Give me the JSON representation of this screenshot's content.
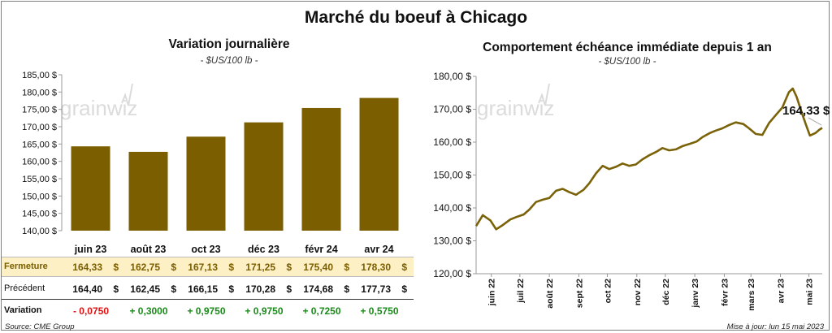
{
  "main_title": "Marché du boeuf à Chicago",
  "left_panel": {
    "title": "Variation  journalière",
    "subtitle": "- $US/100 lb -",
    "watermark": "grainwiz",
    "table": {
      "row_labels": {
        "close": "Fermeture",
        "previous": "Précédent",
        "change": "Variation"
      },
      "currency_symbol": "$",
      "close": [
        "164,33",
        "162,75",
        "167,13",
        "171,25",
        "175,40",
        "178,30"
      ],
      "previous": [
        "164,40",
        "162,45",
        "166,15",
        "170,28",
        "174,68",
        "177,73"
      ],
      "change": [
        "- 0,0750",
        "+ 0,3000",
        "+ 0,9750",
        "+ 0,9750",
        "+ 0,7250",
        "+ 0,5750"
      ]
    }
  },
  "right_panel": {
    "title": "Comportement  échéance immédiate depuis 1 an",
    "subtitle": "- $US/100 lb -",
    "watermark": "grainwiz",
    "callout": "164,33 $"
  },
  "footer": {
    "source": "Source: CME Group",
    "updated": "Mise à jour: lun 15 mai 2023"
  },
  "colors": {
    "bar": "#7a5e00",
    "line": "#7a6208",
    "close_row_bg": "#fdf0c4",
    "negative": "#e01010",
    "positive": "#1a8a1a"
  },
  "chart_data": [
    {
      "type": "bar",
      "categories": [
        "juin 23",
        "août 23",
        "oct 23",
        "déc 23",
        "févr 24",
        "avr 24"
      ],
      "values": [
        164.33,
        162.75,
        167.13,
        171.25,
        175.4,
        178.3
      ],
      "ylim": [
        140,
        185
      ],
      "yticks": [
        "140,00 $",
        "145,00 $",
        "150,00 $",
        "155,00 $",
        "160,00 $",
        "165,00 $",
        "170,00 $",
        "175,00 $",
        "180,00 $",
        "185,00 $"
      ],
      "grid": false
    },
    {
      "type": "line",
      "ylim": [
        120,
        180
      ],
      "yticks": [
        "120,00 $",
        "130,00 $",
        "140,00 $",
        "150,00 $",
        "160,00 $",
        "170,00 $",
        "180,00 $"
      ],
      "xtick_labels": [
        "juin 22",
        "juil 22",
        "août 22",
        "sept 22",
        "oct 22",
        "nov 22",
        "déc 22",
        "janv 23",
        "févr 23",
        "mars 23",
        "avr 23",
        "mai 23"
      ],
      "x": [
        "2022-05-16",
        "2022-05-23",
        "2022-05-31",
        "2022-06-06",
        "2022-06-13",
        "2022-06-21",
        "2022-06-27",
        "2022-07-05",
        "2022-07-11",
        "2022-07-18",
        "2022-07-25",
        "2022-08-01",
        "2022-08-08",
        "2022-08-15",
        "2022-08-22",
        "2022-08-29",
        "2022-09-06",
        "2022-09-12",
        "2022-09-19",
        "2022-09-26",
        "2022-10-03",
        "2022-10-10",
        "2022-10-17",
        "2022-10-24",
        "2022-10-31",
        "2022-11-07",
        "2022-11-14",
        "2022-11-21",
        "2022-11-28",
        "2022-12-05",
        "2022-12-12",
        "2022-12-19",
        "2022-12-27",
        "2023-01-03",
        "2023-01-09",
        "2023-01-17",
        "2023-01-23",
        "2023-01-30",
        "2023-02-06",
        "2023-02-13",
        "2023-02-21",
        "2023-02-27",
        "2023-03-06",
        "2023-03-13",
        "2023-03-20",
        "2023-03-27",
        "2023-04-03",
        "2023-04-10",
        "2023-04-14",
        "2023-04-18",
        "2023-04-24",
        "2023-04-28",
        "2023-05-02",
        "2023-05-08",
        "2023-05-12",
        "2023-05-15"
      ],
      "y": [
        134.5,
        137.8,
        136.2,
        133.5,
        134.8,
        136.5,
        137.2,
        138.0,
        139.5,
        141.8,
        142.5,
        143.0,
        145.2,
        145.8,
        144.8,
        144.0,
        145.5,
        147.5,
        150.5,
        152.8,
        151.8,
        152.5,
        153.5,
        152.8,
        153.2,
        154.8,
        156.0,
        157.0,
        158.2,
        157.5,
        157.8,
        158.8,
        159.5,
        160.2,
        161.5,
        162.8,
        163.5,
        164.2,
        165.2,
        166.0,
        165.5,
        164.2,
        162.5,
        162.2,
        165.8,
        168.2,
        170.5,
        175.2,
        176.3,
        173.8,
        168.5,
        165.2,
        162.0,
        162.8,
        163.8,
        164.33
      ]
    }
  ]
}
